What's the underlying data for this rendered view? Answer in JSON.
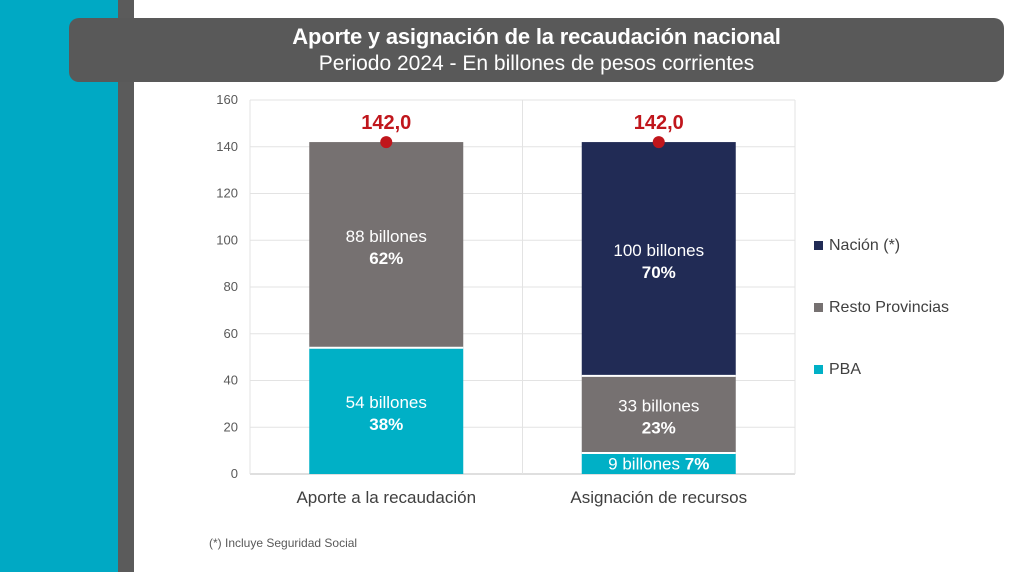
{
  "title": "Aporte y asignación de la recaudación nacional",
  "subtitle": "Periodo 2024 - En billones de pesos corrientes",
  "footnote": "(*) Incluye Seguridad Social",
  "colors": {
    "nacion": "#212b55",
    "resto": "#767171",
    "pba": "#00b0c6",
    "total": "#c0161c"
  },
  "chart_data": {
    "type": "bar",
    "stacked": true,
    "categories": [
      "Aporte a la recaudación",
      "Asignación de recursos"
    ],
    "ylim": [
      0,
      160
    ],
    "yticks": [
      0,
      20,
      40,
      60,
      80,
      100,
      120,
      140,
      160
    ],
    "grid": true,
    "legend_position": "right",
    "series": [
      {
        "name": "PBA",
        "key": "pba",
        "values": [
          54,
          9
        ],
        "value_labels": [
          "54 billones",
          "9 billones"
        ],
        "pct_labels": [
          "38%",
          "7%"
        ]
      },
      {
        "name": "Resto Provincias",
        "key": "resto",
        "values": [
          88,
          33
        ],
        "value_labels": [
          "88 billones",
          "33 billones"
        ],
        "pct_labels": [
          "62%",
          "23%"
        ]
      },
      {
        "name": "Nación (*)",
        "key": "nacion",
        "values": [
          0,
          100
        ],
        "value_labels": [
          "",
          "100 billones"
        ],
        "pct_labels": [
          "",
          "70%"
        ]
      }
    ],
    "totals": [
      142,
      142
    ],
    "total_labels": [
      "142,0",
      "142,0"
    ],
    "legend_order": [
      "nacion",
      "resto",
      "pba"
    ]
  }
}
